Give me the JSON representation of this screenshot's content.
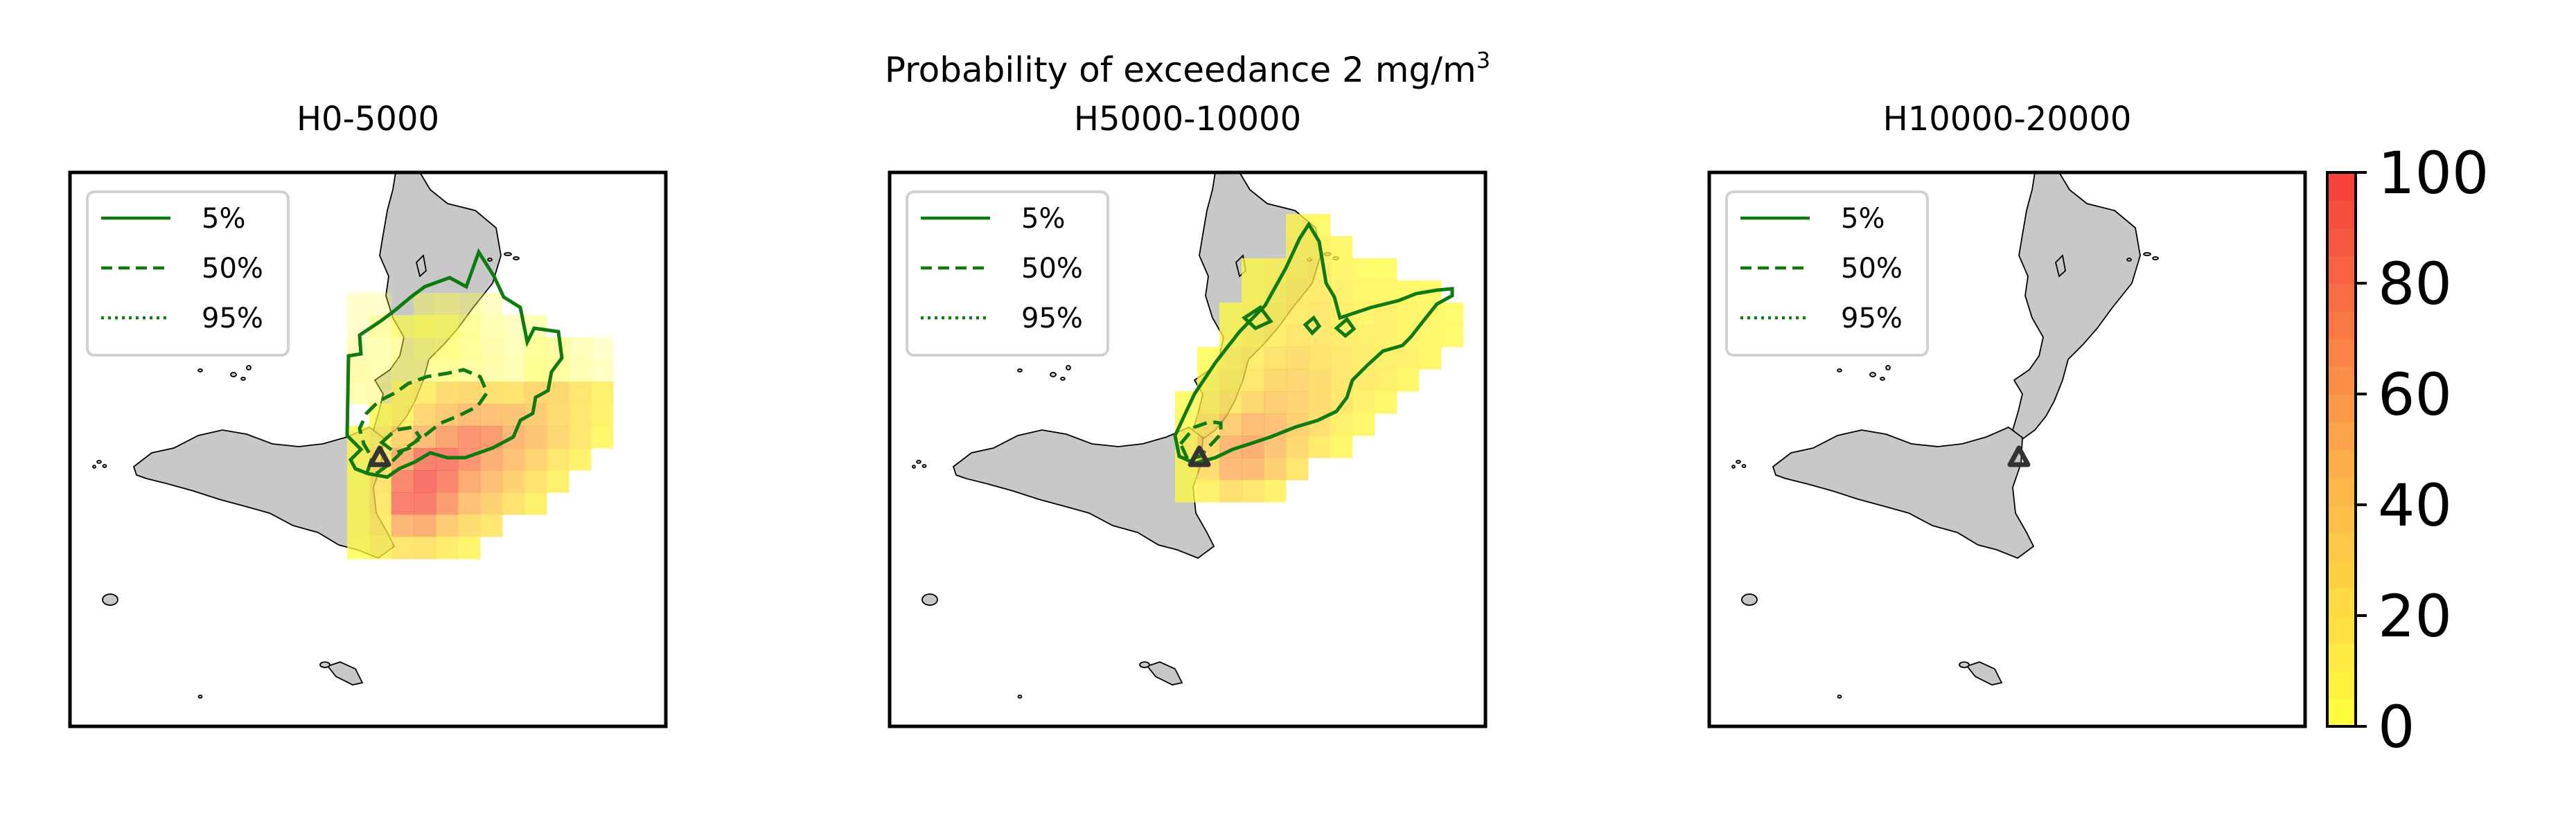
{
  "figure": {
    "suptitle": "Probability of exceedance 2 mg/m",
    "suptitle_superscript": "3"
  },
  "panels": [
    {
      "title": "H0-5000"
    },
    {
      "title": "H5000-10000"
    },
    {
      "title": "H10000-20000"
    }
  ],
  "legend": {
    "items": [
      {
        "label": "5%",
        "linestyle": "solid"
      },
      {
        "label": "50%",
        "linestyle": "dashed"
      },
      {
        "label": "95%",
        "linestyle": "dotted"
      }
    ],
    "contour_color": "#0f7a0f"
  },
  "colorbar": {
    "ticks": [
      "0",
      "20",
      "40",
      "60",
      "80",
      "100"
    ],
    "min": 0,
    "max": 100,
    "color_low": "#ffff3c",
    "color_mid": "#fcaa4a",
    "color_high": "#f73b3b"
  },
  "map": {
    "land_color": "#c8c8c8",
    "vent_marker": "triangle"
  }
}
